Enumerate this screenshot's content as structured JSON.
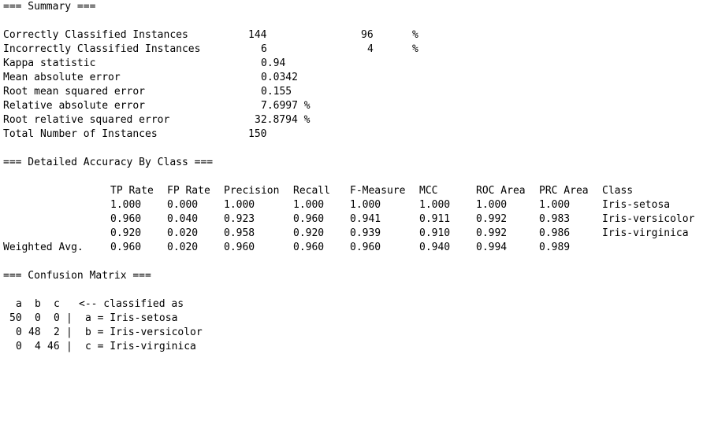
{
  "summary": {
    "header": "=== Summary ===",
    "rows": [
      {
        "label": "Correctly Classified Instances",
        "value": "144",
        "pct": "96",
        "unit": "%"
      },
      {
        "label": "Incorrectly Classified Instances",
        "value": "6",
        "pct": "4",
        "unit": "%"
      },
      {
        "label": "Kappa statistic",
        "value": "0.94"
      },
      {
        "label": "Mean absolute error",
        "value": "0.0342"
      },
      {
        "label": "Root mean squared error",
        "value": "0.155"
      },
      {
        "label": "Relative absolute error",
        "value": "7.6997 %"
      },
      {
        "label": "Root relative squared error",
        "value": "32.8794 %"
      },
      {
        "label": "Total Number of Instances",
        "value": "150"
      }
    ]
  },
  "accuracy": {
    "header": "=== Detailed Accuracy By Class ===",
    "columns": [
      "TP Rate",
      "FP Rate",
      "Precision",
      "Recall",
      "F-Measure",
      "MCC",
      "ROC Area",
      "PRC Area",
      "Class"
    ],
    "rows": [
      {
        "label": "",
        "cells": [
          "1.000",
          "0.000",
          "1.000",
          "1.000",
          "1.000",
          "1.000",
          "1.000",
          "1.000",
          "Iris-setosa"
        ]
      },
      {
        "label": "",
        "cells": [
          "0.960",
          "0.040",
          "0.923",
          "0.960",
          "0.941",
          "0.911",
          "0.992",
          "0.983",
          "Iris-versicolor"
        ]
      },
      {
        "label": "",
        "cells": [
          "0.920",
          "0.020",
          "0.958",
          "0.920",
          "0.939",
          "0.910",
          "0.992",
          "0.986",
          "Iris-virginica"
        ]
      },
      {
        "label": "Weighted Avg.",
        "cells": [
          "0.960",
          "0.020",
          "0.960",
          "0.960",
          "0.960",
          "0.940",
          "0.994",
          "0.989",
          ""
        ]
      }
    ]
  },
  "confusion": {
    "header": "=== Confusion Matrix ===",
    "column_letters": [
      "a",
      "b",
      "c"
    ],
    "classified_as": "<-- classified as",
    "rows": [
      {
        "cells": [
          "50",
          "0",
          "0"
        ],
        "bar": "|",
        "legend": "a = Iris-setosa"
      },
      {
        "cells": [
          "0",
          "48",
          "2"
        ],
        "bar": "|",
        "legend": "b = Iris-versicolor"
      },
      {
        "cells": [
          "0",
          "4",
          "46"
        ],
        "bar": "|",
        "legend": "c = Iris-virginica"
      }
    ]
  }
}
